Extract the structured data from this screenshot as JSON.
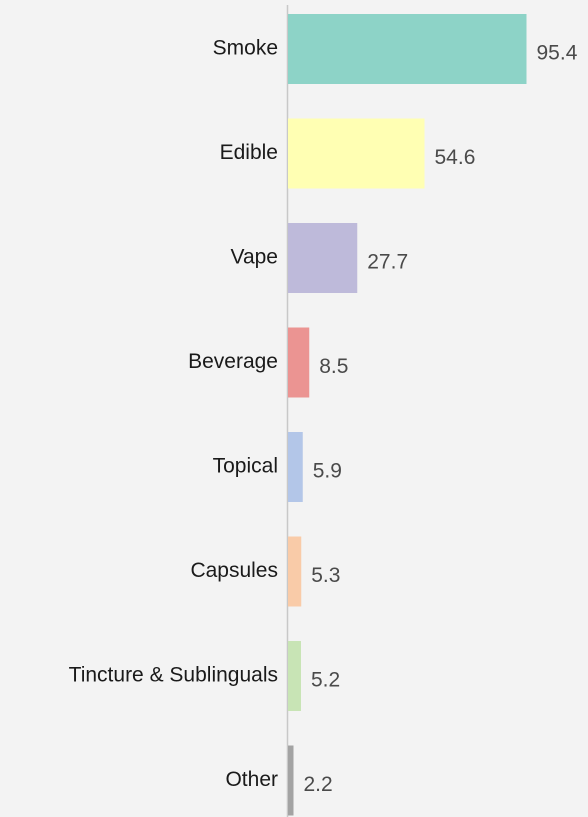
{
  "chart_data": {
    "type": "barh",
    "categories": [
      "Smoke",
      "Edible",
      "Vape",
      "Beverage",
      "Topical",
      "Capsules",
      "Tincture & Sublinguals",
      "Other"
    ],
    "values": [
      95.4,
      54.6,
      27.7,
      8.5,
      5.9,
      5.3,
      5.2,
      2.2
    ],
    "colors": [
      "#8dd3c7",
      "#ffffb3",
      "#bebada",
      "#eb9492",
      "#b3c6e8",
      "#f9cba8",
      "#c8e4b5",
      "#a3a3a3"
    ],
    "xlim": [
      0,
      100
    ]
  }
}
